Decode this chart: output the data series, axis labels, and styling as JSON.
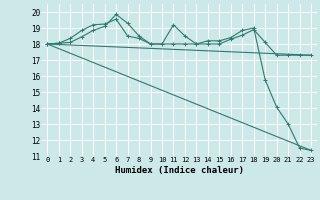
{
  "title": "",
  "xlabel": "Humidex (Indice chaleur)",
  "ylabel": "",
  "xlim": [
    -0.5,
    23.5
  ],
  "ylim": [
    11,
    20.5
  ],
  "yticks": [
    11,
    12,
    13,
    14,
    15,
    16,
    17,
    18,
    19,
    20
  ],
  "xticks": [
    0,
    1,
    2,
    3,
    4,
    5,
    6,
    7,
    8,
    9,
    10,
    11,
    12,
    13,
    14,
    15,
    16,
    17,
    18,
    19,
    20,
    21,
    22,
    23
  ],
  "background_color": "#cde8e8",
  "grid_color": "#ffffff",
  "line_color": "#2d7a6e",
  "line1": {
    "x": [
      0,
      1,
      2,
      3,
      4,
      5,
      6,
      7,
      8,
      9,
      10,
      11,
      12,
      13,
      14,
      15,
      16,
      17,
      18,
      19,
      20,
      21,
      22,
      23
    ],
    "y": [
      18.0,
      18.05,
      18.1,
      18.45,
      18.85,
      19.1,
      19.85,
      19.3,
      18.5,
      18.0,
      18.0,
      18.0,
      18.0,
      18.0,
      18.0,
      18.0,
      18.3,
      18.55,
      18.9,
      18.1,
      17.3,
      17.3,
      17.3,
      17.3
    ]
  },
  "line2": {
    "x": [
      0,
      1,
      2,
      3,
      4,
      5,
      6,
      7,
      8,
      9,
      10,
      11,
      12,
      13,
      14,
      15,
      16,
      17,
      18,
      19,
      20,
      21,
      22,
      23
    ],
    "y": [
      18.0,
      18.05,
      18.35,
      18.85,
      19.2,
      19.25,
      19.55,
      18.5,
      18.35,
      18.0,
      18.0,
      19.2,
      18.5,
      18.0,
      18.2,
      18.2,
      18.4,
      18.85,
      19.0,
      15.75,
      14.05,
      13.0,
      11.5,
      11.35
    ]
  },
  "line3": {
    "x": [
      0,
      23
    ],
    "y": [
      18.0,
      17.3
    ]
  },
  "line4": {
    "x": [
      0,
      23
    ],
    "y": [
      18.0,
      11.35
    ]
  }
}
